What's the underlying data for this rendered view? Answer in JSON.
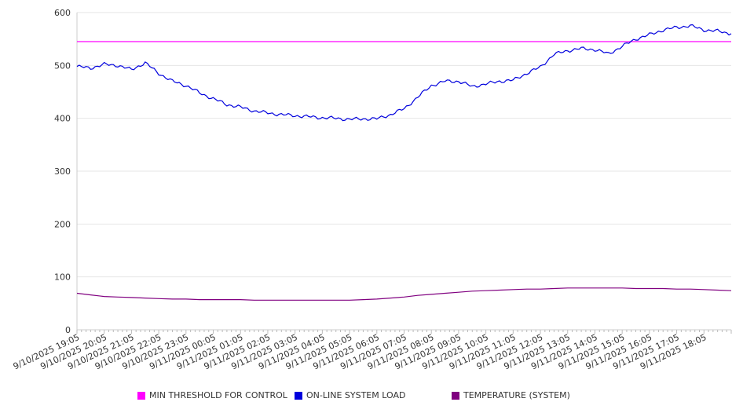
{
  "chart_data": {
    "type": "line",
    "title": "",
    "xlabel": "",
    "ylabel": "",
    "ylim": [
      0,
      600
    ],
    "yticks": [
      0,
      100,
      200,
      300,
      400,
      500,
      600
    ],
    "grid": true,
    "legend_position": "bottom",
    "x_start": "9/10/2025 19:05",
    "x_end": "9/11/2025 19:05",
    "x_tick_labels": [
      "9/10/2025 19:05",
      "9/10/2025 20:05",
      "9/10/2025 21:05",
      "9/10/2025 22:05",
      "9/10/2025 23:05",
      "9/11/2025 00:05",
      "9/11/2025 01:05",
      "9/11/2025 02:05",
      "9/11/2025 03:05",
      "9/11/2025 04:05",
      "9/11/2025 05:05",
      "9/11/2025 06:05",
      "9/11/2025 07:05",
      "9/11/2025 08:05",
      "9/11/2025 09:05",
      "9/11/2025 10:05",
      "9/11/2025 11:05",
      "9/11/2025 12:05",
      "9/11/2025 13:05",
      "9/11/2025 14:05",
      "9/11/2025 15:05",
      "9/11/2025 16:05",
      "9/11/2025 17:05",
      "9/11/2025 18:05"
    ],
    "x_hours": [
      0,
      0.5,
      1,
      1.5,
      2,
      2.5,
      3,
      3.5,
      4,
      4.5,
      5,
      5.5,
      6,
      6.5,
      7,
      7.5,
      8,
      8.5,
      9,
      9.5,
      10,
      10.5,
      11,
      11.5,
      12,
      12.5,
      13,
      13.5,
      14,
      14.5,
      15,
      15.5,
      16,
      16.5,
      17,
      17.5,
      18,
      18.5,
      19,
      19.5,
      20,
      20.5,
      21,
      21.5,
      22,
      22.5,
      23,
      23.5,
      24
    ],
    "series": [
      {
        "name": "MIN THRESHOLD FOR CONTROL",
        "color": "#ff00ff",
        "values": [
          545,
          545,
          545,
          545,
          545,
          545,
          545,
          545,
          545,
          545,
          545,
          545,
          545,
          545,
          545,
          545,
          545,
          545,
          545,
          545,
          545,
          545,
          545,
          545,
          545,
          545,
          545,
          545,
          545,
          545,
          545,
          545,
          545,
          545,
          545,
          545,
          545,
          545,
          545,
          545,
          545,
          545,
          545,
          545,
          545,
          545,
          545,
          545,
          545
        ]
      },
      {
        "name": "ON-LINE SYSTEM LOAD",
        "color": "#0000dd",
        "values": [
          498,
          495,
          502,
          500,
          492,
          505,
          485,
          470,
          462,
          448,
          437,
          426,
          421,
          414,
          410,
          407,
          405,
          403,
          401,
          400,
          398,
          399,
          399,
          407,
          418,
          440,
          462,
          470,
          470,
          460,
          465,
          470,
          472,
          485,
          497,
          521,
          528,
          532,
          530,
          522,
          536,
          550,
          558,
          567,
          572,
          575,
          567,
          565,
          560
        ]
      },
      {
        "name": "TEMPERATURE (SYSTEM)",
        "color": "#800080",
        "values": [
          69,
          66,
          63,
          62,
          61,
          60,
          59,
          58,
          58,
          57,
          57,
          57,
          57,
          56,
          56,
          56,
          56,
          56,
          56,
          56,
          56,
          57,
          58,
          60,
          62,
          65,
          67,
          69,
          71,
          73,
          74,
          75,
          76,
          77,
          77,
          78,
          79,
          79,
          79,
          79,
          79,
          78,
          78,
          78,
          77,
          77,
          76,
          75,
          74
        ]
      }
    ]
  }
}
